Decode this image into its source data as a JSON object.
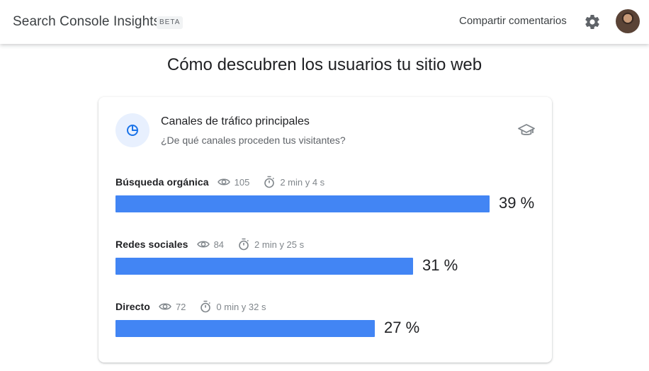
{
  "header": {
    "app_title": "Search Console Insights",
    "beta_label": "BETA",
    "feedback_label": "Compartir comentarios",
    "settings_icon": "gear-icon",
    "avatar": "user-avatar"
  },
  "page": {
    "heading": "Cómo descubren los usuarios tu sitio web"
  },
  "card": {
    "icon": "pie-chart-icon",
    "title": "Canales de tráfico principales",
    "subtitle": "¿De qué canales proceden tus visitantes?",
    "learn_icon": "graduation-cap-icon"
  },
  "channels": [
    {
      "name": "Búsqueda orgánica",
      "views": "105",
      "duration": "2 min y 4 s",
      "percent_label": "39 %",
      "share": 0.39
    },
    {
      "name": "Redes sociales",
      "views": "84",
      "duration": "2 min y 25 s",
      "percent_label": "31 %",
      "share": 0.31
    },
    {
      "name": "Directo",
      "views": "72",
      "duration": "0 min y 32 s",
      "percent_label": "27 %",
      "share": 0.27
    }
  ],
  "colors": {
    "bar": "#4285f4",
    "icon_accent": "#1a73e8",
    "icon_background": "#e8f0fe"
  }
}
